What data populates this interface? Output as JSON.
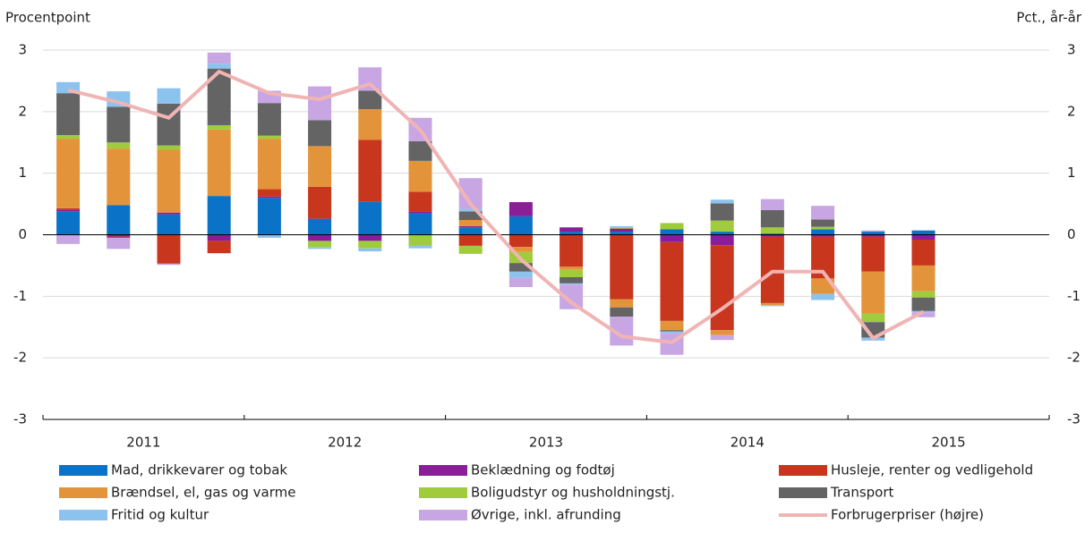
{
  "chart_data": {
    "type": "bar",
    "stacked": true,
    "y_label": "Procentpoint",
    "y2_label": "Pct., år-år",
    "categories": [
      null,
      null,
      null,
      null,
      null,
      null,
      null,
      null,
      null,
      null,
      null,
      null,
      null,
      null,
      null,
      null,
      null,
      null,
      null,
      null
    ],
    "year_labels": [
      "2011",
      "2012",
      "2013",
      "2014",
      "2015"
    ],
    "ylim": [
      -3,
      3
    ],
    "yticks": [
      -3,
      -2,
      -1,
      0,
      1,
      2,
      3
    ],
    "y2lim": [
      -3,
      3
    ],
    "y2ticks": [
      -3,
      -2,
      -1,
      0,
      1,
      2,
      3
    ],
    "grid": true,
    "series": [
      {
        "name": "Mad, drikkevarer og tobak",
        "color": "#0a73c8",
        "values": [
          0.38,
          0.48,
          0.33,
          0.63,
          0.6,
          0.26,
          0.54,
          0.35,
          0.12,
          0.3,
          0.05,
          0.05,
          0.09,
          0.05,
          0.02,
          0.09,
          0.05,
          0.07,
          null,
          null
        ]
      },
      {
        "name": "Beklædning og fodtøj",
        "color": "#8a1e96",
        "values": [
          0.03,
          -0.03,
          0.03,
          -0.1,
          0.02,
          -0.1,
          -0.1,
          0.03,
          0.02,
          0.23,
          0.07,
          0.05,
          -0.12,
          -0.17,
          -0.03,
          -0.03,
          -0.03,
          -0.08,
          null,
          null
        ]
      },
      {
        "name": "Husleje, renter og vedligehold",
        "color": "#c8361e",
        "values": [
          0.02,
          -0.02,
          -0.47,
          -0.2,
          0.12,
          0.52,
          1.0,
          0.32,
          -0.18,
          -0.2,
          -0.52,
          -1.05,
          -1.28,
          -1.38,
          -1.08,
          -0.68,
          -0.57,
          -0.42,
          null,
          null
        ]
      },
      {
        "name": "Brændsel, el, gas og varme",
        "color": "#e3943a",
        "values": [
          1.13,
          0.92,
          1.02,
          1.08,
          0.82,
          0.66,
          0.5,
          0.5,
          0.1,
          -0.08,
          -0.05,
          -0.13,
          -0.15,
          -0.08,
          -0.03,
          -0.25,
          -0.68,
          -0.42,
          null,
          null
        ]
      },
      {
        "name": "Boligudstyr og husholdningstj.",
        "color": "#9fcb3c",
        "values": [
          0.06,
          0.1,
          0.07,
          0.07,
          0.05,
          -0.1,
          -0.12,
          -0.18,
          -0.13,
          -0.18,
          -0.12,
          0.02,
          0.1,
          0.18,
          0.1,
          0.04,
          -0.14,
          -0.1,
          null,
          null
        ]
      },
      {
        "name": "Transport",
        "color": "#646464",
        "values": [
          0.68,
          0.58,
          0.68,
          0.92,
          0.53,
          0.42,
          0.3,
          0.32,
          0.14,
          -0.14,
          -0.1,
          -0.15,
          -0.02,
          0.28,
          0.28,
          0.12,
          -0.25,
          -0.22,
          null,
          null
        ]
      },
      {
        "name": "Fritid og kultur",
        "color": "#8cc3ee",
        "values": [
          0.18,
          0.25,
          0.25,
          0.08,
          -0.05,
          -0.03,
          -0.05,
          -0.04,
          0.04,
          -0.1,
          -0.02,
          0.02,
          -0.03,
          0.06,
          -0.02,
          -0.1,
          -0.05,
          -0.02,
          null,
          null
        ]
      },
      {
        "name": "Øvrige, inkl. afrunding",
        "color": "#c8a6e4",
        "values": [
          -0.15,
          -0.18,
          -0.02,
          0.18,
          0.2,
          0.55,
          0.38,
          0.38,
          0.5,
          -0.15,
          -0.4,
          -0.47,
          -0.35,
          -0.08,
          0.18,
          0.22,
          0.02,
          -0.08,
          null,
          null
        ]
      },
      {
        "name": "Forbrugerpriser (højre)",
        "color": "#f0b4b4",
        "type": "line",
        "axis": "y2",
        "values": [
          2.35,
          2.15,
          1.9,
          2.65,
          2.3,
          2.2,
          2.45,
          1.7,
          0.5,
          -0.4,
          -1.1,
          -1.65,
          -1.75,
          -1.2,
          -0.6,
          -0.6,
          -1.68,
          -1.25,
          null,
          null
        ]
      }
    ]
  }
}
